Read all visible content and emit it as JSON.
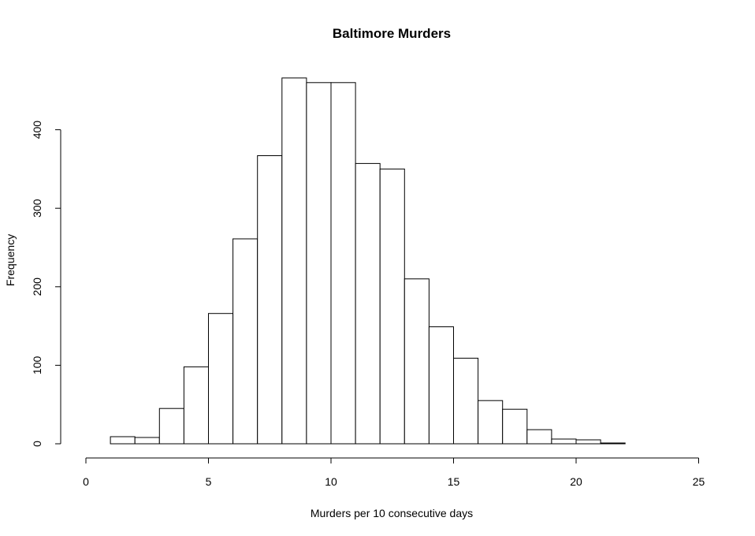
{
  "chart_data": {
    "type": "bar",
    "title": "Baltimore Murders",
    "xlabel": "Murders per 10 consecutive days",
    "ylabel": "Frequency",
    "xlim": [
      0,
      25
    ],
    "ylim": [
      0,
      470
    ],
    "x_ticks": [
      "0",
      "5",
      "10",
      "15",
      "20",
      "25"
    ],
    "y_ticks": [
      "0",
      "100",
      "200",
      "300",
      "400"
    ],
    "grid": false,
    "bins": [
      {
        "x0": 1,
        "x1": 2,
        "count": 9
      },
      {
        "x0": 2,
        "x1": 3,
        "count": 8
      },
      {
        "x0": 3,
        "x1": 4,
        "count": 45
      },
      {
        "x0": 4,
        "x1": 5,
        "count": 98
      },
      {
        "x0": 5,
        "x1": 6,
        "count": 166
      },
      {
        "x0": 6,
        "x1": 7,
        "count": 261
      },
      {
        "x0": 7,
        "x1": 8,
        "count": 367
      },
      {
        "x0": 8,
        "x1": 9,
        "count": 466
      },
      {
        "x0": 9,
        "x1": 10,
        "count": 460
      },
      {
        "x0": 10,
        "x1": 11,
        "count": 460
      },
      {
        "x0": 11,
        "x1": 12,
        "count": 357
      },
      {
        "x0": 12,
        "x1": 13,
        "count": 350
      },
      {
        "x0": 13,
        "x1": 14,
        "count": 210
      },
      {
        "x0": 14,
        "x1": 15,
        "count": 149
      },
      {
        "x0": 15,
        "x1": 16,
        "count": 109
      },
      {
        "x0": 16,
        "x1": 17,
        "count": 55
      },
      {
        "x0": 17,
        "x1": 18,
        "count": 44
      },
      {
        "x0": 18,
        "x1": 19,
        "count": 18
      },
      {
        "x0": 19,
        "x1": 20,
        "count": 6
      },
      {
        "x0": 20,
        "x1": 21,
        "count": 5
      },
      {
        "x0": 21,
        "x1": 22,
        "count": 1
      }
    ]
  }
}
